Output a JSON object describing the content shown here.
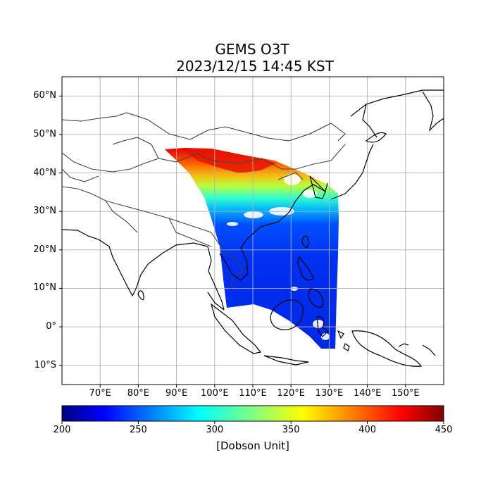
{
  "title": "GEMS O3T",
  "subtitle": "2023/12/15 14:45 KST",
  "map": {
    "lon_range": [
      60,
      160
    ],
    "lat_range": [
      -15,
      65
    ],
    "grid": true,
    "lat_ticks": [
      {
        "value": 60,
        "label": "60°N"
      },
      {
        "value": 50,
        "label": "50°N"
      },
      {
        "value": 40,
        "label": "40°N"
      },
      {
        "value": 30,
        "label": "30°N"
      },
      {
        "value": 20,
        "label": "20°N"
      },
      {
        "value": 10,
        "label": "10°N"
      },
      {
        "value": 0,
        "label": "0°"
      },
      {
        "value": -10,
        "label": "10°S"
      }
    ],
    "lon_ticks": [
      {
        "value": 70,
        "label": "70°E"
      },
      {
        "value": 80,
        "label": "80°E"
      },
      {
        "value": 90,
        "label": "90°E"
      },
      {
        "value": 100,
        "label": "100°E"
      },
      {
        "value": 110,
        "label": "110°E"
      },
      {
        "value": 120,
        "label": "120°E"
      },
      {
        "value": 130,
        "label": "130°E"
      },
      {
        "value": 140,
        "label": "140°E"
      },
      {
        "value": 150,
        "label": "150°E"
      }
    ]
  },
  "colorbar": {
    "label": "[Dobson Unit]",
    "min": 200,
    "max": 450,
    "colormap": "jet",
    "ticks": [
      200,
      250,
      300,
      350,
      400,
      450
    ]
  },
  "colors": {
    "coastline": "#000000",
    "borders": "#444444",
    "grid": "#b0b0b0"
  }
}
